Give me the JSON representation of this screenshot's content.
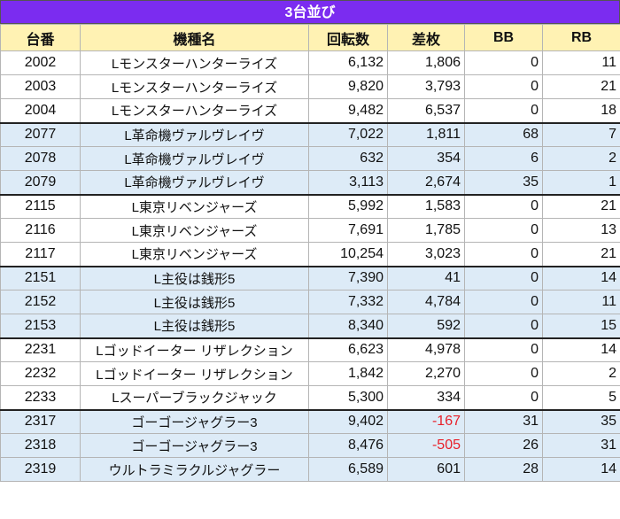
{
  "title": "3台並び",
  "headers": [
    "台番",
    "機種名",
    "回転数",
    "差枚",
    "BB",
    "RB"
  ],
  "rows": [
    {
      "dai": "2002",
      "kishu": "Lモンスターハンターライズ",
      "kaiten": "6,132",
      "samai": "1,806",
      "bb": "0",
      "rb": "11",
      "group": 0
    },
    {
      "dai": "2003",
      "kishu": "Lモンスターハンターライズ",
      "kaiten": "9,820",
      "samai": "3,793",
      "bb": "0",
      "rb": "21",
      "group": 0
    },
    {
      "dai": "2004",
      "kishu": "Lモンスターハンターライズ",
      "kaiten": "9,482",
      "samai": "6,537",
      "bb": "0",
      "rb": "18",
      "group": 0
    },
    {
      "dai": "2077",
      "kishu": "L革命機ヴァルヴレイヴ",
      "kaiten": "7,022",
      "samai": "1,811",
      "bb": "68",
      "rb": "7",
      "group": 1
    },
    {
      "dai": "2078",
      "kishu": "L革命機ヴァルヴレイヴ",
      "kaiten": "632",
      "samai": "354",
      "bb": "6",
      "rb": "2",
      "group": 1
    },
    {
      "dai": "2079",
      "kishu": "L革命機ヴァルヴレイヴ",
      "kaiten": "3,113",
      "samai": "2,674",
      "bb": "35",
      "rb": "1",
      "group": 1
    },
    {
      "dai": "2115",
      "kishu": "L東京リベンジャーズ",
      "kaiten": "5,992",
      "samai": "1,583",
      "bb": "0",
      "rb": "21",
      "group": 2
    },
    {
      "dai": "2116",
      "kishu": "L東京リベンジャーズ",
      "kaiten": "7,691",
      "samai": "1,785",
      "bb": "0",
      "rb": "13",
      "group": 2
    },
    {
      "dai": "2117",
      "kishu": "L東京リベンジャーズ",
      "kaiten": "10,254",
      "samai": "3,023",
      "bb": "0",
      "rb": "21",
      "group": 2
    },
    {
      "dai": "2151",
      "kishu": "L主役は銭形5",
      "kaiten": "7,390",
      "samai": "41",
      "bb": "0",
      "rb": "14",
      "group": 3
    },
    {
      "dai": "2152",
      "kishu": "L主役は銭形5",
      "kaiten": "7,332",
      "samai": "4,784",
      "bb": "0",
      "rb": "11",
      "group": 3
    },
    {
      "dai": "2153",
      "kishu": "L主役は銭形5",
      "kaiten": "8,340",
      "samai": "592",
      "bb": "0",
      "rb": "15",
      "group": 3
    },
    {
      "dai": "2231",
      "kishu": "Lゴッドイーター リザレクション",
      "kaiten": "6,623",
      "samai": "4,978",
      "bb": "0",
      "rb": "14",
      "group": 4
    },
    {
      "dai": "2232",
      "kishu": "Lゴッドイーター リザレクション",
      "kaiten": "1,842",
      "samai": "2,270",
      "bb": "0",
      "rb": "2",
      "group": 4
    },
    {
      "dai": "2233",
      "kishu": "Lスーパーブラックジャック",
      "kaiten": "5,300",
      "samai": "334",
      "bb": "0",
      "rb": "5",
      "group": 4
    },
    {
      "dai": "2317",
      "kishu": "ゴーゴージャグラー3",
      "kaiten": "9,402",
      "samai": "-167",
      "bb": "31",
      "rb": "35",
      "group": 5
    },
    {
      "dai": "2318",
      "kishu": "ゴーゴージャグラー3",
      "kaiten": "8,476",
      "samai": "-505",
      "bb": "26",
      "rb": "31",
      "group": 5
    },
    {
      "dai": "2319",
      "kishu": "ウルトラミラクルジャグラー",
      "kaiten": "6,589",
      "samai": "601",
      "bb": "28",
      "rb": "14",
      "group": 5
    }
  ],
  "colors": {
    "title_bg": "#7B2CF0",
    "header_bg": "#FFF2B3",
    "band_bg": "#DDEBF7",
    "negative": "#E8202A"
  }
}
